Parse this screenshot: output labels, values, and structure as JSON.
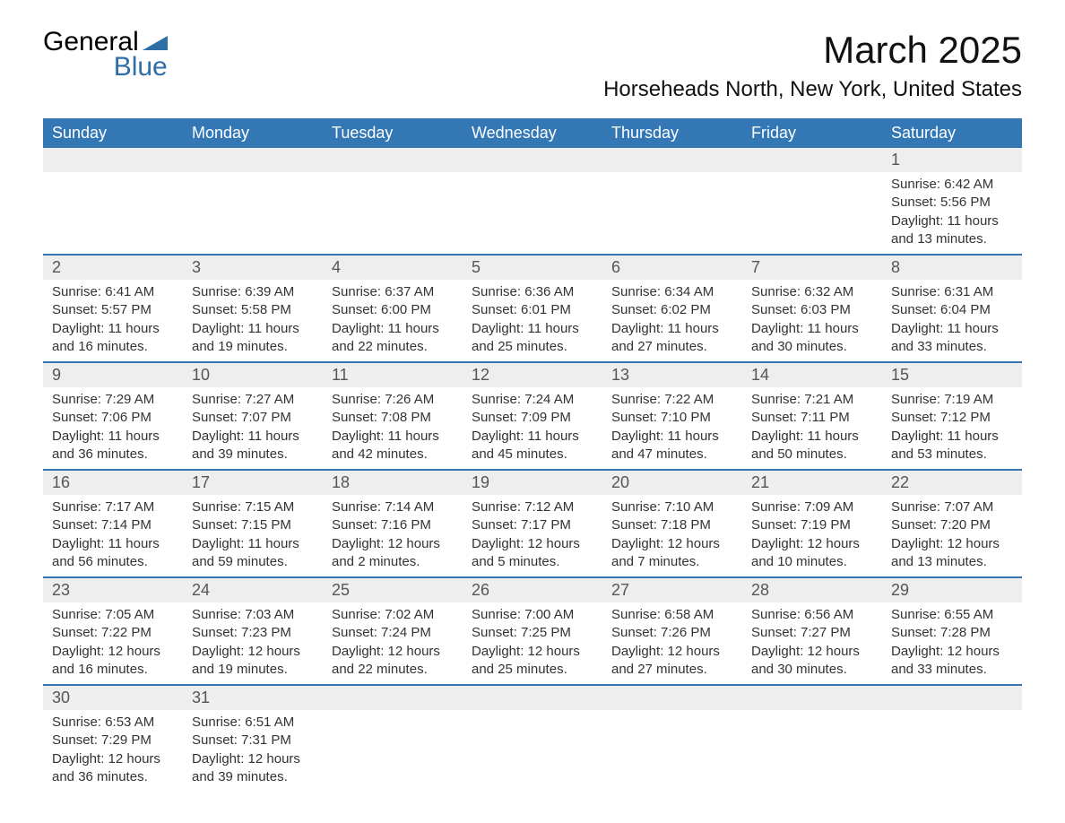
{
  "logo": {
    "word1": "General",
    "word2": "Blue",
    "icon_color": "#2f6fa7"
  },
  "title": "March 2025",
  "location": "Horseheads North, New York, United States",
  "colors": {
    "header_bg": "#3378b5",
    "header_text": "#ffffff",
    "daynum_bg": "#eeeeee",
    "border": "#3378b5",
    "text": "#333333"
  },
  "columns": [
    "Sunday",
    "Monday",
    "Tuesday",
    "Wednesday",
    "Thursday",
    "Friday",
    "Saturday"
  ],
  "weeks": [
    [
      null,
      null,
      null,
      null,
      null,
      null,
      {
        "n": "1",
        "sunrise": "6:42 AM",
        "sunset": "5:56 PM",
        "dl1": "11 hours",
        "dl2": "and 13 minutes."
      }
    ],
    [
      {
        "n": "2",
        "sunrise": "6:41 AM",
        "sunset": "5:57 PM",
        "dl1": "11 hours",
        "dl2": "and 16 minutes."
      },
      {
        "n": "3",
        "sunrise": "6:39 AM",
        "sunset": "5:58 PM",
        "dl1": "11 hours",
        "dl2": "and 19 minutes."
      },
      {
        "n": "4",
        "sunrise": "6:37 AM",
        "sunset": "6:00 PM",
        "dl1": "11 hours",
        "dl2": "and 22 minutes."
      },
      {
        "n": "5",
        "sunrise": "6:36 AM",
        "sunset": "6:01 PM",
        "dl1": "11 hours",
        "dl2": "and 25 minutes."
      },
      {
        "n": "6",
        "sunrise": "6:34 AM",
        "sunset": "6:02 PM",
        "dl1": "11 hours",
        "dl2": "and 27 minutes."
      },
      {
        "n": "7",
        "sunrise": "6:32 AM",
        "sunset": "6:03 PM",
        "dl1": "11 hours",
        "dl2": "and 30 minutes."
      },
      {
        "n": "8",
        "sunrise": "6:31 AM",
        "sunset": "6:04 PM",
        "dl1": "11 hours",
        "dl2": "and 33 minutes."
      }
    ],
    [
      {
        "n": "9",
        "sunrise": "7:29 AM",
        "sunset": "7:06 PM",
        "dl1": "11 hours",
        "dl2": "and 36 minutes."
      },
      {
        "n": "10",
        "sunrise": "7:27 AM",
        "sunset": "7:07 PM",
        "dl1": "11 hours",
        "dl2": "and 39 minutes."
      },
      {
        "n": "11",
        "sunrise": "7:26 AM",
        "sunset": "7:08 PM",
        "dl1": "11 hours",
        "dl2": "and 42 minutes."
      },
      {
        "n": "12",
        "sunrise": "7:24 AM",
        "sunset": "7:09 PM",
        "dl1": "11 hours",
        "dl2": "and 45 minutes."
      },
      {
        "n": "13",
        "sunrise": "7:22 AM",
        "sunset": "7:10 PM",
        "dl1": "11 hours",
        "dl2": "and 47 minutes."
      },
      {
        "n": "14",
        "sunrise": "7:21 AM",
        "sunset": "7:11 PM",
        "dl1": "11 hours",
        "dl2": "and 50 minutes."
      },
      {
        "n": "15",
        "sunrise": "7:19 AM",
        "sunset": "7:12 PM",
        "dl1": "11 hours",
        "dl2": "and 53 minutes."
      }
    ],
    [
      {
        "n": "16",
        "sunrise": "7:17 AM",
        "sunset": "7:14 PM",
        "dl1": "11 hours",
        "dl2": "and 56 minutes."
      },
      {
        "n": "17",
        "sunrise": "7:15 AM",
        "sunset": "7:15 PM",
        "dl1": "11 hours",
        "dl2": "and 59 minutes."
      },
      {
        "n": "18",
        "sunrise": "7:14 AM",
        "sunset": "7:16 PM",
        "dl1": "12 hours",
        "dl2": "and 2 minutes."
      },
      {
        "n": "19",
        "sunrise": "7:12 AM",
        "sunset": "7:17 PM",
        "dl1": "12 hours",
        "dl2": "and 5 minutes."
      },
      {
        "n": "20",
        "sunrise": "7:10 AM",
        "sunset": "7:18 PM",
        "dl1": "12 hours",
        "dl2": "and 7 minutes."
      },
      {
        "n": "21",
        "sunrise": "7:09 AM",
        "sunset": "7:19 PM",
        "dl1": "12 hours",
        "dl2": "and 10 minutes."
      },
      {
        "n": "22",
        "sunrise": "7:07 AM",
        "sunset": "7:20 PM",
        "dl1": "12 hours",
        "dl2": "and 13 minutes."
      }
    ],
    [
      {
        "n": "23",
        "sunrise": "7:05 AM",
        "sunset": "7:22 PM",
        "dl1": "12 hours",
        "dl2": "and 16 minutes."
      },
      {
        "n": "24",
        "sunrise": "7:03 AM",
        "sunset": "7:23 PM",
        "dl1": "12 hours",
        "dl2": "and 19 minutes."
      },
      {
        "n": "25",
        "sunrise": "7:02 AM",
        "sunset": "7:24 PM",
        "dl1": "12 hours",
        "dl2": "and 22 minutes."
      },
      {
        "n": "26",
        "sunrise": "7:00 AM",
        "sunset": "7:25 PM",
        "dl1": "12 hours",
        "dl2": "and 25 minutes."
      },
      {
        "n": "27",
        "sunrise": "6:58 AM",
        "sunset": "7:26 PM",
        "dl1": "12 hours",
        "dl2": "and 27 minutes."
      },
      {
        "n": "28",
        "sunrise": "6:56 AM",
        "sunset": "7:27 PM",
        "dl1": "12 hours",
        "dl2": "and 30 minutes."
      },
      {
        "n": "29",
        "sunrise": "6:55 AM",
        "sunset": "7:28 PM",
        "dl1": "12 hours",
        "dl2": "and 33 minutes."
      }
    ],
    [
      {
        "n": "30",
        "sunrise": "6:53 AM",
        "sunset": "7:29 PM",
        "dl1": "12 hours",
        "dl2": "and 36 minutes."
      },
      {
        "n": "31",
        "sunrise": "6:51 AM",
        "sunset": "7:31 PM",
        "dl1": "12 hours",
        "dl2": "and 39 minutes."
      },
      null,
      null,
      null,
      null,
      null
    ]
  ],
  "labels": {
    "sunrise": "Sunrise:",
    "sunset": "Sunset:",
    "daylight": "Daylight:"
  }
}
